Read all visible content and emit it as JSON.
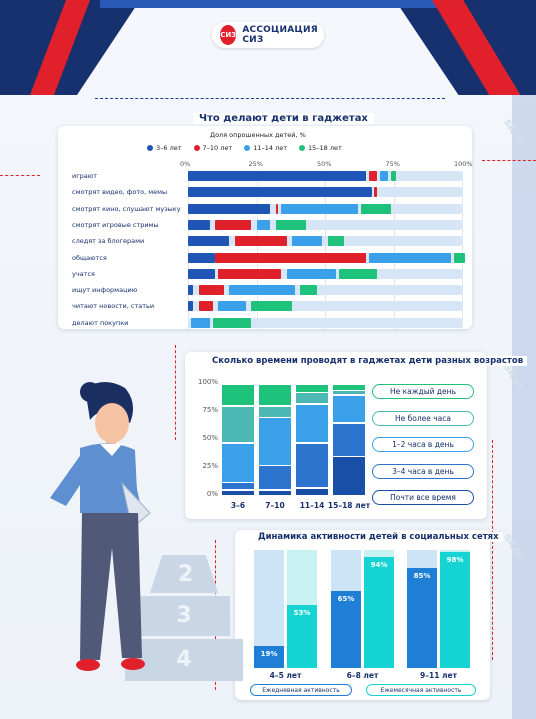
{
  "logo": {
    "text": "АССОЦИАЦИЯ СИЗ",
    "mark": "СИЗ"
  },
  "colors": {
    "c3_6": "#1f55b5",
    "c7_10": "#e0202a",
    "c11_14": "#3aa0ea",
    "c15_18": "#1ec27a",
    "navy": "#17306e",
    "track": "#d6e6f7"
  },
  "side_word": "sKot",
  "pyramid_labels": [
    "2",
    "3",
    "4"
  ],
  "chart_data": [
    {
      "type": "bar",
      "title": "Что делают дети в гаджетах",
      "subtitle": "Доля опрошенных детей, %",
      "xlabel": "",
      "ylabel": "",
      "xlim": [
        0,
        100
      ],
      "x_ticks": [
        "0%",
        "25%",
        "50%",
        "75%",
        "100%"
      ],
      "legend_position": "top",
      "series_names": [
        "3–6 лет",
        "7–10 лет",
        "11–14 лет",
        "15–18 лет"
      ],
      "categories": [
        "играют",
        "смотрят видео, фото, мемы",
        "смотрят кино, слушают музыку",
        "смотрят игровые стримы",
        "следят за блогерами",
        "общаются",
        "учатся",
        "ищут информацию",
        "читают новости, статьи",
        "делают покупки"
      ],
      "rows": [
        [
          65,
          3,
          3,
          2
        ],
        [
          67,
          1,
          0,
          0
        ],
        [
          30,
          1,
          28,
          11
        ],
        [
          8,
          13,
          5,
          11
        ],
        [
          15,
          19,
          11,
          6
        ],
        [
          10,
          55,
          30,
          4
        ],
        [
          10,
          23,
          18,
          14
        ],
        [
          2,
          9,
          24,
          6
        ],
        [
          2,
          5,
          10,
          15
        ],
        [
          0,
          0,
          7,
          14
        ]
      ],
      "row_gaps": [
        [
          0,
          1,
          1,
          1
        ],
        [
          0,
          1,
          1,
          1
        ],
        [
          0,
          2,
          1,
          1
        ],
        [
          0,
          2,
          2,
          2
        ],
        [
          0,
          2,
          2,
          2
        ],
        [
          0,
          0,
          1,
          1
        ],
        [
          0,
          1,
          2,
          1
        ],
        [
          0,
          2,
          2,
          2
        ],
        [
          0,
          2,
          2,
          2
        ],
        [
          0,
          0,
          1,
          1
        ]
      ]
    },
    {
      "type": "bar",
      "stacked": true,
      "title": "Сколько времени проводят в гаджетах дети разных возрастов",
      "xlabel": "",
      "ylabel": "",
      "ylim": [
        0,
        100
      ],
      "y_ticks": [
        "0%",
        "25%",
        "50%",
        "75%",
        "100%"
      ],
      "categories": [
        "3–6",
        "7–10",
        "11–14",
        "15–18 лет"
      ],
      "legend_position": "right",
      "series": [
        {
          "name": "Почти все время",
          "color": "#1a4fa8",
          "values": [
            5,
            5,
            7,
            35
          ]
        },
        {
          "name": "3–4 часа в день",
          "color": "#2d74cf",
          "values": [
            7,
            22,
            40,
            30
          ]
        },
        {
          "name": "1–2 часа в день",
          "color": "#3aa0ea",
          "values": [
            35,
            43,
            35,
            25
          ]
        },
        {
          "name": "Не более часа",
          "color": "#4cb8b4",
          "values": [
            33,
            10,
            10,
            4
          ]
        },
        {
          "name": "Не каждый день",
          "color": "#1ec27a",
          "values": [
            20,
            20,
            8,
            6
          ]
        }
      ],
      "pill_colors": [
        "#1ec27a",
        "#4cb8b4",
        "#3aa0ea",
        "#2d74cf",
        "#1a4fa8"
      ]
    },
    {
      "type": "bar",
      "title": "Динамика активности детей в социальных сетях",
      "xlabel": "",
      "ylabel": "",
      "ylim": [
        0,
        100
      ],
      "categories": [
        "4–5 лет",
        "6–8 лет",
        "9–11 лет"
      ],
      "legend_position": "bottom",
      "series": [
        {
          "name": "Ежедневная активность",
          "color": "#1f7fd6",
          "values": [
            19,
            65,
            85
          ],
          "labels": [
            "19%",
            "65%",
            "85%"
          ]
        },
        {
          "name": "Ежемесячная активность",
          "color": "#16d4d4",
          "values": [
            53,
            94,
            98
          ],
          "labels": [
            "53%",
            "94%",
            "98%"
          ]
        }
      ]
    }
  ]
}
